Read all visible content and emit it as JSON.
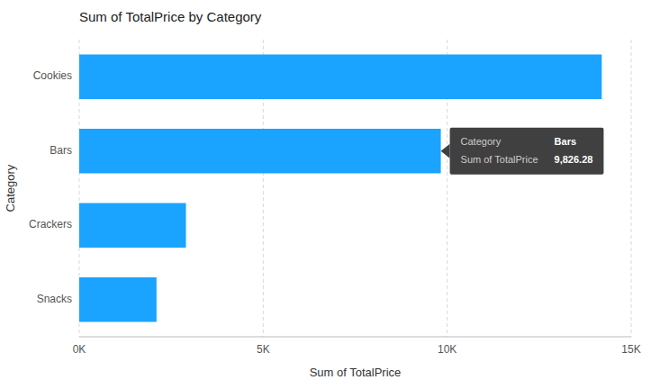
{
  "chart_data": {
    "type": "bar",
    "orientation": "horizontal",
    "title": "Sum of TotalPrice by Category",
    "xlabel": "Sum of TotalPrice",
    "ylabel": "Category",
    "categories": [
      "Cookies",
      "Bars",
      "Crackers",
      "Snacks"
    ],
    "values": [
      14200,
      9826.28,
      2900,
      2100
    ],
    "color": "#1aa3ff",
    "xlim": [
      0,
      15000
    ],
    "xticks": [
      {
        "value": 0,
        "label": "0K"
      },
      {
        "value": 5000,
        "label": "5K"
      },
      {
        "value": 10000,
        "label": "10K"
      },
      {
        "value": 15000,
        "label": "15K"
      }
    ],
    "grid": true,
    "annotations": [
      {
        "rows": [
          [
            "Category",
            "Bars"
          ],
          [
            "Sum of TotalPrice",
            "9,826.28"
          ]
        ]
      }
    ]
  }
}
